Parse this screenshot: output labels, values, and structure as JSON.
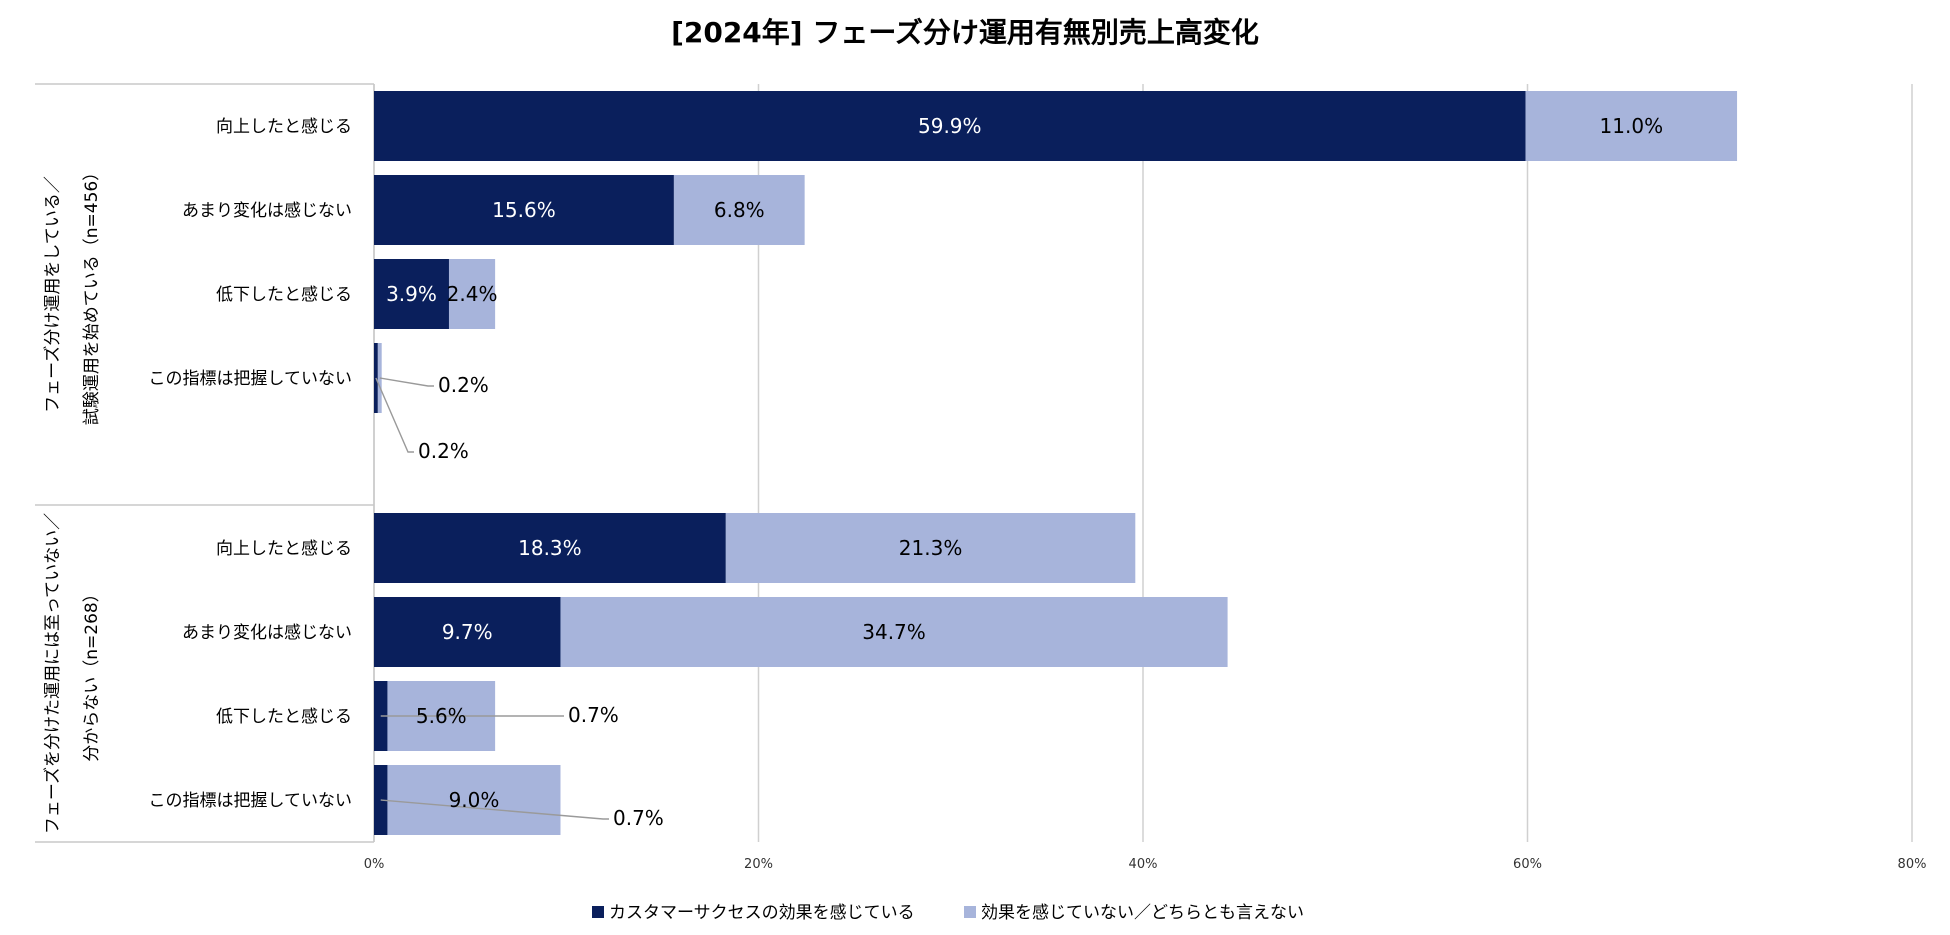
{
  "chart_data": {
    "type": "bar",
    "orientation": "horizontal",
    "stacked": true,
    "title": "[2024年] フェーズ分け運用有無別売上高変化",
    "xlim": [
      0,
      80
    ],
    "xticks": [
      "0%",
      "20%",
      "40%",
      "60%",
      "80%"
    ],
    "grid": true,
    "legend_position": "bottom",
    "colors": {
      "series1": "#0a1f5c",
      "series2": "#a7b4db",
      "grid": "#d0d0d0"
    },
    "groups": [
      {
        "label_line1": "フェーズ分け運用をしている／",
        "label_line2": "試験運用を始めている（n=456）"
      },
      {
        "label_line1": "フェーズを分けた運用には至っていない／",
        "label_line2": "分からない（n=268）"
      }
    ],
    "categories": [
      "向上したと感じる",
      "あまり変化は感じない",
      "低下したと感じる",
      "この指標は把握していない",
      "向上したと感じる",
      "あまり変化は感じない",
      "低下したと感じる",
      "この指標は把握していない"
    ],
    "series": [
      {
        "name": "カスタマーサクセスの効果を感じている",
        "values": [
          59.9,
          15.6,
          3.9,
          0.2,
          18.3,
          9.7,
          0.7,
          0.7
        ],
        "labels": [
          "59.9%",
          "15.6%",
          "3.9%",
          "0.2%",
          "18.3%",
          "9.7%",
          "0.7%",
          "0.7%"
        ]
      },
      {
        "name": "効果を感じていない／どちらとも言えない",
        "values": [
          11.0,
          6.8,
          2.4,
          0.2,
          21.3,
          34.7,
          5.6,
          9.0
        ],
        "labels": [
          "11.0%",
          "6.8%",
          "2.4%",
          "0.2%",
          "21.3%",
          "34.7%",
          "5.6%",
          "9.0%"
        ]
      }
    ]
  }
}
